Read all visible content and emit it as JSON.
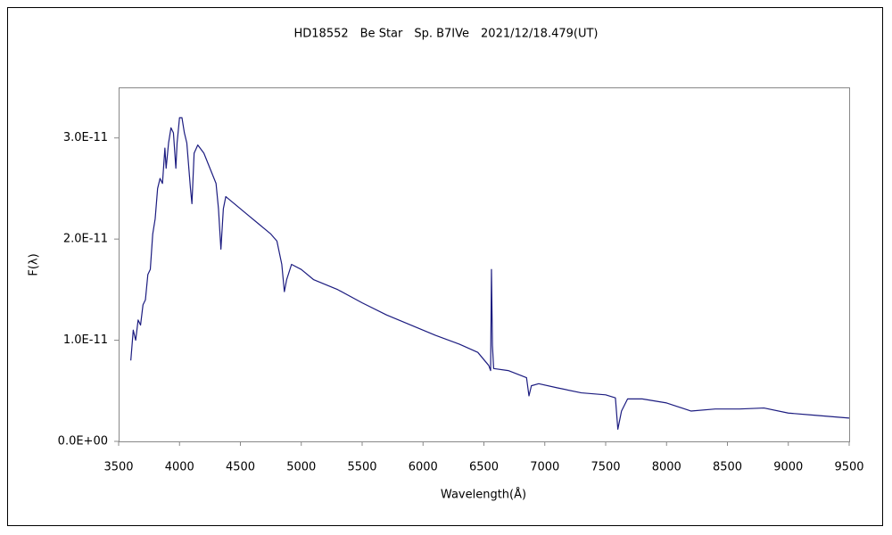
{
  "chart_data": {
    "type": "line",
    "title": "HD18552　Be Star　Sp. B7IVe　2021/12/18.479(UT)",
    "x_label": "Wavelength(Å)",
    "y_label": "F(λ)",
    "xlim": [
      3500,
      9500
    ],
    "xticks": [
      3500,
      4000,
      4500,
      5000,
      5500,
      6000,
      6500,
      7000,
      7500,
      8000,
      8500,
      9000,
      9500
    ],
    "ylim": [
      0,
      3.5e-11
    ],
    "yticks": [
      {
        "value": 0,
        "label": "0.0E+00"
      },
      {
        "value": 1e-11,
        "label": "1.0E-11"
      },
      {
        "value": 2e-11,
        "label": "2.0E-11"
      },
      {
        "value": 3e-11,
        "label": "3.0E-11"
      }
    ],
    "grid": false,
    "series": [
      {
        "color": "#1c1c80",
        "x": [
          3600,
          3620,
          3640,
          3660,
          3680,
          3700,
          3720,
          3740,
          3760,
          3780,
          3800,
          3820,
          3840,
          3860,
          3880,
          3890,
          3910,
          3930,
          3950,
          3970,
          3980,
          4000,
          4020,
          4040,
          4060,
          4090,
          4102,
          4120,
          4150,
          4200,
          4250,
          4300,
          4320,
          4340,
          4360,
          4380,
          4450,
          4550,
          4650,
          4750,
          4800,
          4840,
          4861,
          4880,
          4920,
          5000,
          5100,
          5300,
          5500,
          5700,
          5900,
          6100,
          6300,
          6450,
          6540,
          6555,
          6562,
          6570,
          6580,
          6700,
          6850,
          6870,
          6890,
          6950,
          7100,
          7300,
          7500,
          7580,
          7600,
          7630,
          7680,
          7800,
          8000,
          8200,
          8400,
          8600,
          8800,
          9000,
          9200,
          9400,
          9500
        ],
        "values": [
          8e-12,
          1.1e-11,
          1e-11,
          1.2e-11,
          1.15e-11,
          1.35e-11,
          1.4e-11,
          1.65e-11,
          1.7e-11,
          2.05e-11,
          2.2e-11,
          2.5e-11,
          2.6e-11,
          2.55e-11,
          2.9e-11,
          2.7e-11,
          2.95e-11,
          3.1e-11,
          3.05e-11,
          2.7e-11,
          2.95e-11,
          3.2e-11,
          3.2e-11,
          3.05e-11,
          2.95e-11,
          2.5e-11,
          2.35e-11,
          2.85e-11,
          2.93e-11,
          2.85e-11,
          2.7e-11,
          2.55e-11,
          2.3e-11,
          1.9e-11,
          2.3e-11,
          2.42e-11,
          2.35e-11,
          2.25e-11,
          2.15e-11,
          2.05e-11,
          1.98e-11,
          1.75e-11,
          1.48e-11,
          1.6e-11,
          1.75e-11,
          1.7e-11,
          1.6e-11,
          1.5e-11,
          1.37e-11,
          1.25e-11,
          1.15e-11,
          1.05e-11,
          9.6e-12,
          8.8e-12,
          7.5e-12,
          7e-12,
          1.7e-11,
          9.5e-12,
          7.2e-12,
          7e-12,
          6.3e-12,
          4.5e-12,
          5.5e-12,
          5.7e-12,
          5.3e-12,
          4.8e-12,
          4.6e-12,
          4.3e-12,
          1.2e-12,
          3e-12,
          4.2e-12,
          4.2e-12,
          3.8e-12,
          3e-12,
          3.2e-12,
          3.2e-12,
          3.3e-12,
          2.8e-12,
          2.6e-12,
          2.4e-12,
          2.3e-12
        ]
      }
    ]
  }
}
